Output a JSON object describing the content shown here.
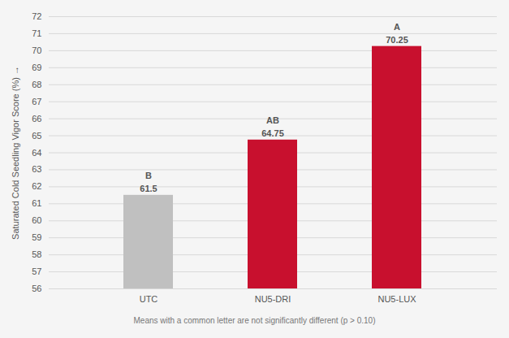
{
  "chart_data": {
    "type": "bar",
    "categories": [
      "UTC",
      "NU5-DRI",
      "NU5-LUX"
    ],
    "values": [
      61.5,
      64.75,
      70.25
    ],
    "colors": [
      "#c0c0c0",
      "#c8102e",
      "#c8102e"
    ],
    "ylabel": "Saturated Cold Seedling Vigor Score (%)",
    "ylim": [
      56,
      72
    ],
    "yticks": [
      56,
      57,
      58,
      59,
      60,
      61,
      62,
      63,
      64,
      65,
      66,
      67,
      68,
      69,
      70,
      71,
      72
    ],
    "grid": true,
    "data_labels": true,
    "annotations": [
      {
        "category": "UTC",
        "text": "B"
      },
      {
        "category": "NU5-DRI",
        "text": "AB"
      },
      {
        "category": "NU5-LUX",
        "text": "A"
      }
    ],
    "footnote": "Means with a common letter are not significantly different (p > 0.10)"
  }
}
